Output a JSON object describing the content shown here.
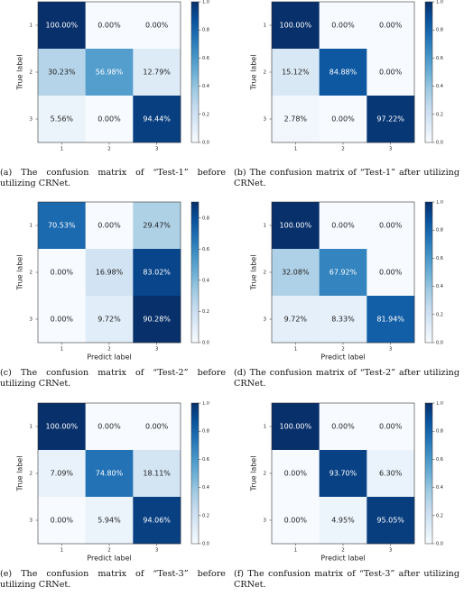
{
  "chart_data": [
    {
      "type": "heatmap",
      "caption": "(a) The confusion matrix of “Test-1” before utilizing CRNet.",
      "ylabel": "True label",
      "x": [
        "1",
        "2",
        "3"
      ],
      "y": [
        "1",
        "2",
        "3"
      ],
      "values": [
        [
          1.0,
          0.0,
          0.0
        ],
        [
          0.3023,
          0.5698,
          0.1279
        ],
        [
          0.0556,
          0.0,
          0.9444
        ]
      ],
      "value_labels": [
        [
          "100.00%",
          "0.00%",
          "0.00%"
        ],
        [
          "30.23%",
          "56.98%",
          "12.79%"
        ],
        [
          "5.56%",
          "0.00%",
          "94.44%"
        ]
      ],
      "zlim": [
        0,
        1.0
      ],
      "zticks": [
        {
          "value": 0,
          "label": "0.0"
        },
        {
          "value": 0.2,
          "label": "0.2"
        },
        {
          "value": 0.4,
          "label": "0.4"
        },
        {
          "value": 0.6,
          "label": "0.6"
        },
        {
          "value": 0.8,
          "label": "0.8"
        },
        {
          "value": 1.0,
          "label": "1.0"
        }
      ],
      "colormap": "Blues"
    },
    {
      "type": "heatmap",
      "caption": "(b) The confusion matrix of “Test-1” after utilizing CRNet.",
      "ylabel": "True label",
      "x": [
        "1",
        "2",
        "3"
      ],
      "y": [
        "1",
        "2",
        "3"
      ],
      "values": [
        [
          1.0,
          0.0,
          0.0
        ],
        [
          0.1512,
          0.8488,
          0.0
        ],
        [
          0.0278,
          0.0,
          0.9722
        ]
      ],
      "value_labels": [
        [
          "100.00%",
          "0.00%",
          "0.00%"
        ],
        [
          "15.12%",
          "84.88%",
          "0.00%"
        ],
        [
          "2.78%",
          "0.00%",
          "97.22%"
        ]
      ],
      "zlim": [
        0,
        1.0
      ],
      "zticks": [
        {
          "value": 0,
          "label": "0.0"
        },
        {
          "value": 0.2,
          "label": "0.2"
        },
        {
          "value": 0.4,
          "label": "0.4"
        },
        {
          "value": 0.6,
          "label": "0.6"
        },
        {
          "value": 0.8,
          "label": "0.8"
        },
        {
          "value": 1.0,
          "label": "1.0"
        }
      ],
      "colormap": "Blues"
    },
    {
      "type": "heatmap",
      "caption": "(c) The confusion matrix of “Test-2” before utilizing CRNet.",
      "ylabel": "True label",
      "xlabel": "Predict label",
      "x": [
        "1",
        "2",
        "3"
      ],
      "y": [
        "1",
        "2",
        "3"
      ],
      "values": [
        [
          0.7053,
          0.0,
          0.2947
        ],
        [
          0.0,
          0.1698,
          0.8302
        ],
        [
          0.0,
          0.0972,
          0.9028
        ]
      ],
      "value_labels": [
        [
          "70.53%",
          "0.00%",
          "29.47%"
        ],
        [
          "0.00%",
          "16.98%",
          "83.02%"
        ],
        [
          "0.00%",
          "9.72%",
          "90.28%"
        ]
      ],
      "zlim": [
        0,
        0.9028
      ],
      "zticks": [
        {
          "value": 0,
          "label": "0.0"
        },
        {
          "value": 0.2,
          "label": "0.2"
        },
        {
          "value": 0.4,
          "label": "0.4"
        },
        {
          "value": 0.6,
          "label": "0.6"
        },
        {
          "value": 0.8,
          "label": "0.8"
        }
      ],
      "colormap": "Blues"
    },
    {
      "type": "heatmap",
      "caption": "(d) The confusion matrix of “Test-2” after utilizing CRNet.",
      "ylabel": "True label",
      "xlabel": "Predict label",
      "x": [
        "1",
        "2",
        "3"
      ],
      "y": [
        "1",
        "2",
        "3"
      ],
      "values": [
        [
          1.0,
          0.0,
          0.0
        ],
        [
          0.3208,
          0.6792,
          0.0
        ],
        [
          0.0972,
          0.0833,
          0.8194
        ]
      ],
      "value_labels": [
        [
          "100.00%",
          "0.00%",
          "0.00%"
        ],
        [
          "32.08%",
          "67.92%",
          "0.00%"
        ],
        [
          "9.72%",
          "8.33%",
          "81.94%"
        ]
      ],
      "zlim": [
        0,
        1.0
      ],
      "zticks": [
        {
          "value": 0,
          "label": "0.0"
        },
        {
          "value": 0.2,
          "label": "0.2"
        },
        {
          "value": 0.4,
          "label": "0.4"
        },
        {
          "value": 0.6,
          "label": "0.6"
        },
        {
          "value": 0.8,
          "label": "0.8"
        },
        {
          "value": 1.0,
          "label": "1.0"
        }
      ],
      "colormap": "Blues"
    },
    {
      "type": "heatmap",
      "caption": "(e) The confusion matrix of “Test-3” before utilizing CRNet.",
      "ylabel": "True label",
      "xlabel": "Predict label",
      "x": [
        "1",
        "2",
        "3"
      ],
      "y": [
        "1",
        "2",
        "3"
      ],
      "values": [
        [
          1.0,
          0.0,
          0.0
        ],
        [
          0.0709,
          0.748,
          0.1811
        ],
        [
          0.0,
          0.0594,
          0.9406
        ]
      ],
      "value_labels": [
        [
          "100.00%",
          "0.00%",
          "0.00%"
        ],
        [
          "7.09%",
          "74.80%",
          "18.11%"
        ],
        [
          "0.00%",
          "5.94%",
          "94.06%"
        ]
      ],
      "zlim": [
        0,
        1.0
      ],
      "zticks": [
        {
          "value": 0,
          "label": "0.0"
        },
        {
          "value": 0.2,
          "label": "0.2"
        },
        {
          "value": 0.4,
          "label": "0.4"
        },
        {
          "value": 0.6,
          "label": "0.6"
        },
        {
          "value": 0.8,
          "label": "0.8"
        },
        {
          "value": 1.0,
          "label": "1.0"
        }
      ],
      "colormap": "Blues"
    },
    {
      "type": "heatmap",
      "caption": "(f) The confusion matrix of “Test-3” after utilizing CRNet.",
      "ylabel": "True label",
      "xlabel": "Predict label",
      "x": [
        "1",
        "2",
        "3"
      ],
      "y": [
        "1",
        "2",
        "3"
      ],
      "values": [
        [
          1.0,
          0.0,
          0.0
        ],
        [
          0.0,
          0.937,
          0.063
        ],
        [
          0.0,
          0.0495,
          0.9505
        ]
      ],
      "value_labels": [
        [
          "100.00%",
          "0.00%",
          "0.00%"
        ],
        [
          "0.00%",
          "93.70%",
          "6.30%"
        ],
        [
          "0.00%",
          "4.95%",
          "95.05%"
        ]
      ],
      "zlim": [
        0,
        1.0
      ],
      "zticks": [
        {
          "value": 0,
          "label": "0.0"
        },
        {
          "value": 0.2,
          "label": "0.2"
        },
        {
          "value": 0.4,
          "label": "0.4"
        },
        {
          "value": 0.6,
          "label": "0.6"
        },
        {
          "value": 0.8,
          "label": "0.8"
        },
        {
          "value": 1.0,
          "label": "1.0"
        }
      ],
      "colormap": "Blues"
    }
  ]
}
